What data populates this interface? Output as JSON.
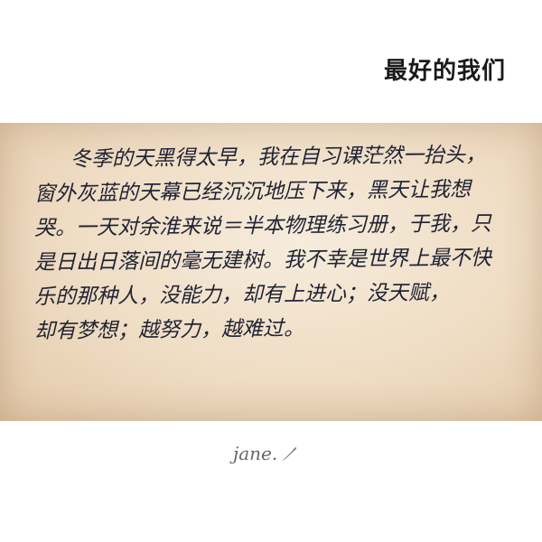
{
  "title": "最好的我们",
  "note": {
    "lines": [
      "冬季的天黑得太早，我在自习课茫然一抬头，",
      "窗外灰蓝的天幕已经沉沉地压下来，黑天让我想",
      "哭。一天对余淮来说＝半本物理练习册，于我，只",
      "是日出日落间的毫无建树。我不幸是世界上最不快",
      "乐的那种人，没能力，却有上进心；没天赋，",
      "却有梦想；越努力，越难过。"
    ]
  },
  "signature": "jane.",
  "icons": {
    "signature_icon": "feather-quill-icon"
  }
}
